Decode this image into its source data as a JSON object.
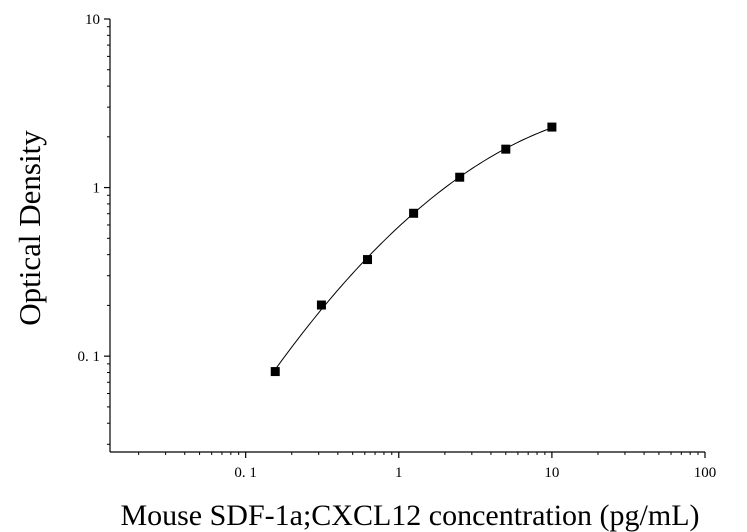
{
  "chart_data": {
    "type": "scatter",
    "title": "",
    "xlabel": "Mouse SDF-1a;CXCL12 concentration (pg/mL)",
    "ylabel": "Optical Density",
    "x_scale": "log",
    "y_scale": "log",
    "xlim": [
      0.013,
      100
    ],
    "ylim": [
      0.027,
      10
    ],
    "x_ticks": [
      0.1,
      1,
      10,
      100
    ],
    "x_tick_labels": [
      "0. 1",
      "1",
      "10",
      "100"
    ],
    "y_ticks": [
      0.1,
      1,
      10
    ],
    "y_tick_labels": [
      "0. 1",
      "1",
      "10"
    ],
    "grid": false,
    "legend": "none",
    "series": [
      {
        "points": [
          {
            "x": 0.156,
            "y": 0.081
          },
          {
            "x": 0.3125,
            "y": 0.201
          },
          {
            "x": 0.625,
            "y": 0.374
          },
          {
            "x": 1.25,
            "y": 0.704
          },
          {
            "x": 2.5,
            "y": 1.152
          },
          {
            "x": 5,
            "y": 1.69
          },
          {
            "x": 10,
            "y": 2.285
          }
        ],
        "marker": "square",
        "color": "#000000",
        "fit_curve": true
      }
    ]
  }
}
